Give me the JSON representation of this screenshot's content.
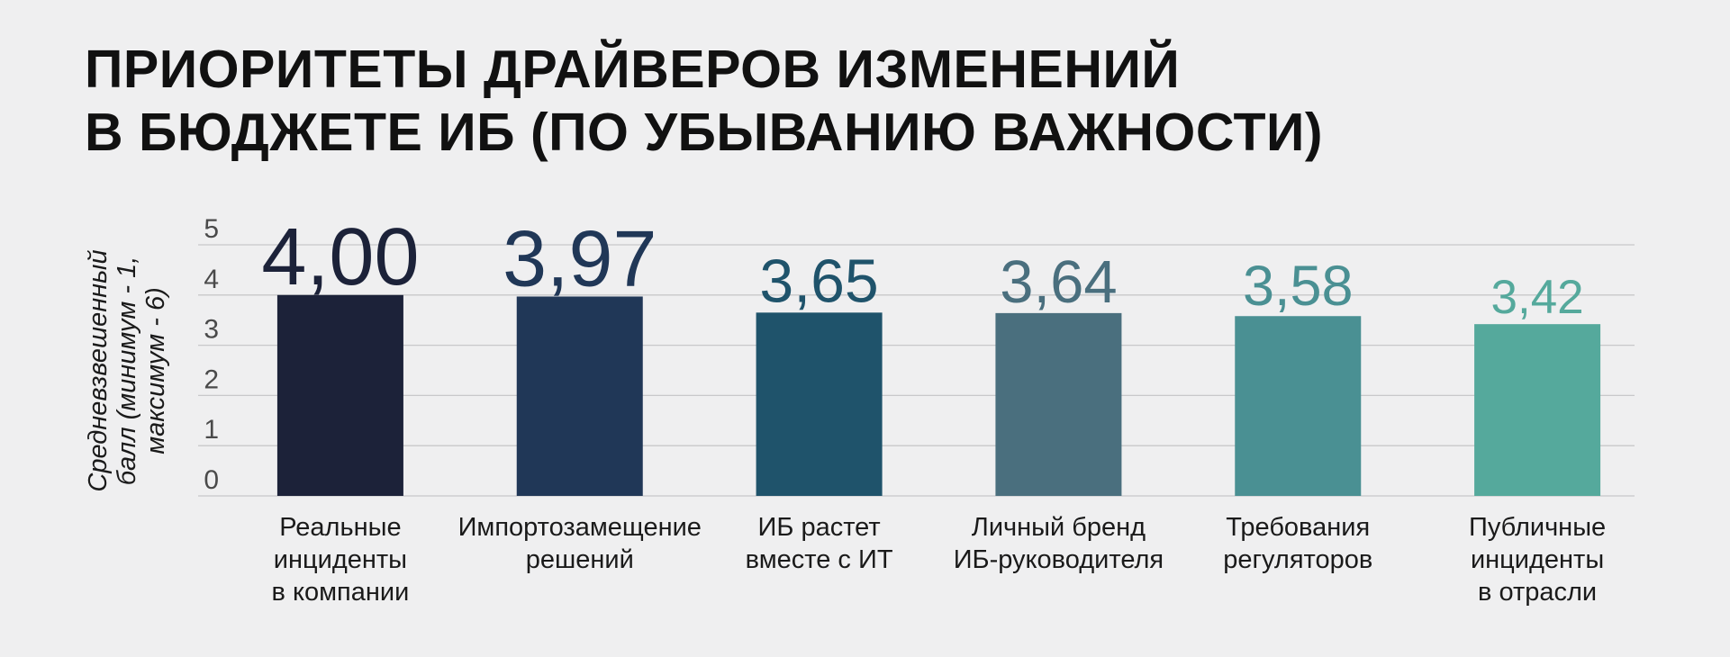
{
  "title_lines": [
    "ПРИОРИТЕТЫ ДРАЙВЕРОВ ИЗМЕНЕНИЙ",
    "В БЮДЖЕТЕ ИБ (ПО УБЫВАНИЮ ВАЖНОСТИ)"
  ],
  "chart_data": {
    "type": "bar",
    "title": "ПРИОРИТЕТЫ ДРАЙВЕРОВ ИЗМЕНЕНИЙ В БЮДЖЕТЕ ИБ (ПО УБЫВАНИЮ ВАЖНОСТИ)",
    "ylabel_lines": [
      "Средневзвешенный",
      "балл (минимум - 1,",
      "максимум - 6)"
    ],
    "ylim": [
      0,
      5
    ],
    "yticks": [
      "0",
      "1",
      "2",
      "3",
      "4",
      "5"
    ],
    "grid": true,
    "categories": [
      [
        "Реальные",
        "инциденты",
        "в компании"
      ],
      [
        "Импортозамещение",
        "решений"
      ],
      [
        "ИБ растет",
        "вместе с ИТ"
      ],
      [
        "Личный бренд",
        "ИБ-руководителя"
      ],
      [
        "Требования",
        "регуляторов"
      ],
      [
        "Публичные",
        "инциденты",
        "в отрасли"
      ]
    ],
    "values": [
      4.0,
      3.97,
      3.65,
      3.64,
      3.58,
      3.42
    ],
    "value_labels": [
      "4,00",
      "3,97",
      "3,65",
      "3,64",
      "3,58",
      "3,42"
    ],
    "bar_colors": [
      "#1c2239",
      "#203757",
      "#1f536b",
      "#4a6f7e",
      "#4a9093",
      "#55a99c"
    ],
    "label_colors": [
      "#1c2239",
      "#203757",
      "#1f536b",
      "#4a6f7e",
      "#4a9093",
      "#55a99c"
    ]
  }
}
